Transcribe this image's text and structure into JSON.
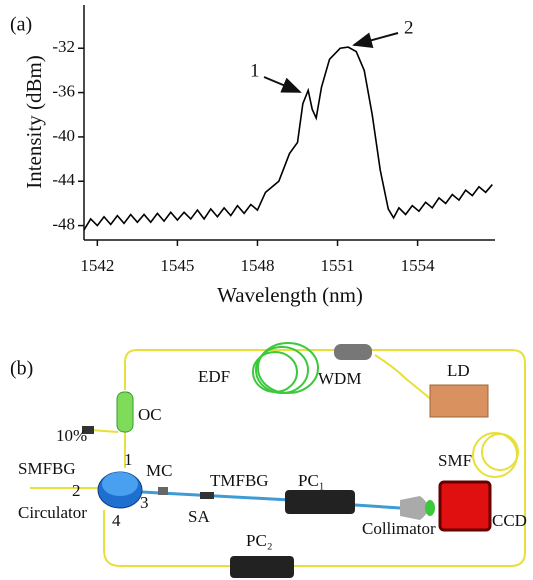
{
  "chart_data": {
    "type": "line",
    "panel_label": "(a)",
    "xlabel": "Wavelength (nm)",
    "ylabel": "Intensity (dBm)",
    "x": [
      1541.5,
      1541.75,
      1542,
      1542.25,
      1542.5,
      1542.75,
      1543,
      1543.25,
      1543.5,
      1543.75,
      1544,
      1544.25,
      1544.5,
      1544.75,
      1545,
      1545.25,
      1545.5,
      1545.75,
      1546,
      1546.25,
      1546.5,
      1546.75,
      1547,
      1547.25,
      1547.5,
      1547.75,
      1548,
      1548.3,
      1548.8,
      1549.2,
      1549.5,
      1549.7,
      1549.9,
      1550.05,
      1550.2,
      1550.4,
      1550.7,
      1551.1,
      1551.4,
      1551.7,
      1552,
      1552.3,
      1552.6,
      1552.9,
      1553.1,
      1553.3,
      1553.55,
      1553.8,
      1554.05,
      1554.3,
      1554.55,
      1554.8,
      1555.05,
      1555.3,
      1555.55,
      1555.8,
      1556.05,
      1556.3,
      1556.55,
      1556.8
    ],
    "series": [
      {
        "color": "#000000",
        "values": [
          -48.4,
          -47.4,
          -48.0,
          -47.2,
          -47.9,
          -47.1,
          -47.8,
          -47.0,
          -47.7,
          -47.0,
          -47.7,
          -46.9,
          -47.6,
          -46.8,
          -47.5,
          -46.8,
          -47.4,
          -46.6,
          -47.4,
          -46.5,
          -47.2,
          -46.4,
          -47.1,
          -46.2,
          -46.9,
          -46.1,
          -46.6,
          -45.0,
          -44.0,
          -41.5,
          -40.5,
          -37.0,
          -35.8,
          -37.5,
          -38.3,
          -35.5,
          -33.0,
          -32.0,
          -31.9,
          -32.3,
          -34.0,
          -38.0,
          -43.0,
          -46.5,
          -47.3,
          -46.4,
          -47.0,
          -46.2,
          -46.7,
          -45.9,
          -46.4,
          -45.5,
          -46.0,
          -45.2,
          -45.7,
          -44.8,
          -45.3,
          -44.5,
          -45.0,
          -44.3
        ]
      }
    ],
    "xlim": [
      1541.5,
      1556.9
    ],
    "xticks": [
      1542,
      1545,
      1548,
      1551,
      1554
    ],
    "ylim": [
      -49.3,
      -28.1
    ],
    "yticks": [
      -48,
      -44,
      -40,
      -36,
      -32
    ],
    "annotations": [
      "1",
      "2"
    ]
  },
  "diagram": {
    "panel_label": "(b)",
    "labels": [
      "EDF",
      "WDM",
      "LD",
      "OC",
      "10%",
      "SMFBG",
      "1",
      "MC",
      "TMFBG",
      "PC₁",
      "SMF",
      "2",
      "3",
      "Circulator",
      "4",
      "SA",
      "Collimator",
      "CCD",
      "PC₂"
    ]
  }
}
